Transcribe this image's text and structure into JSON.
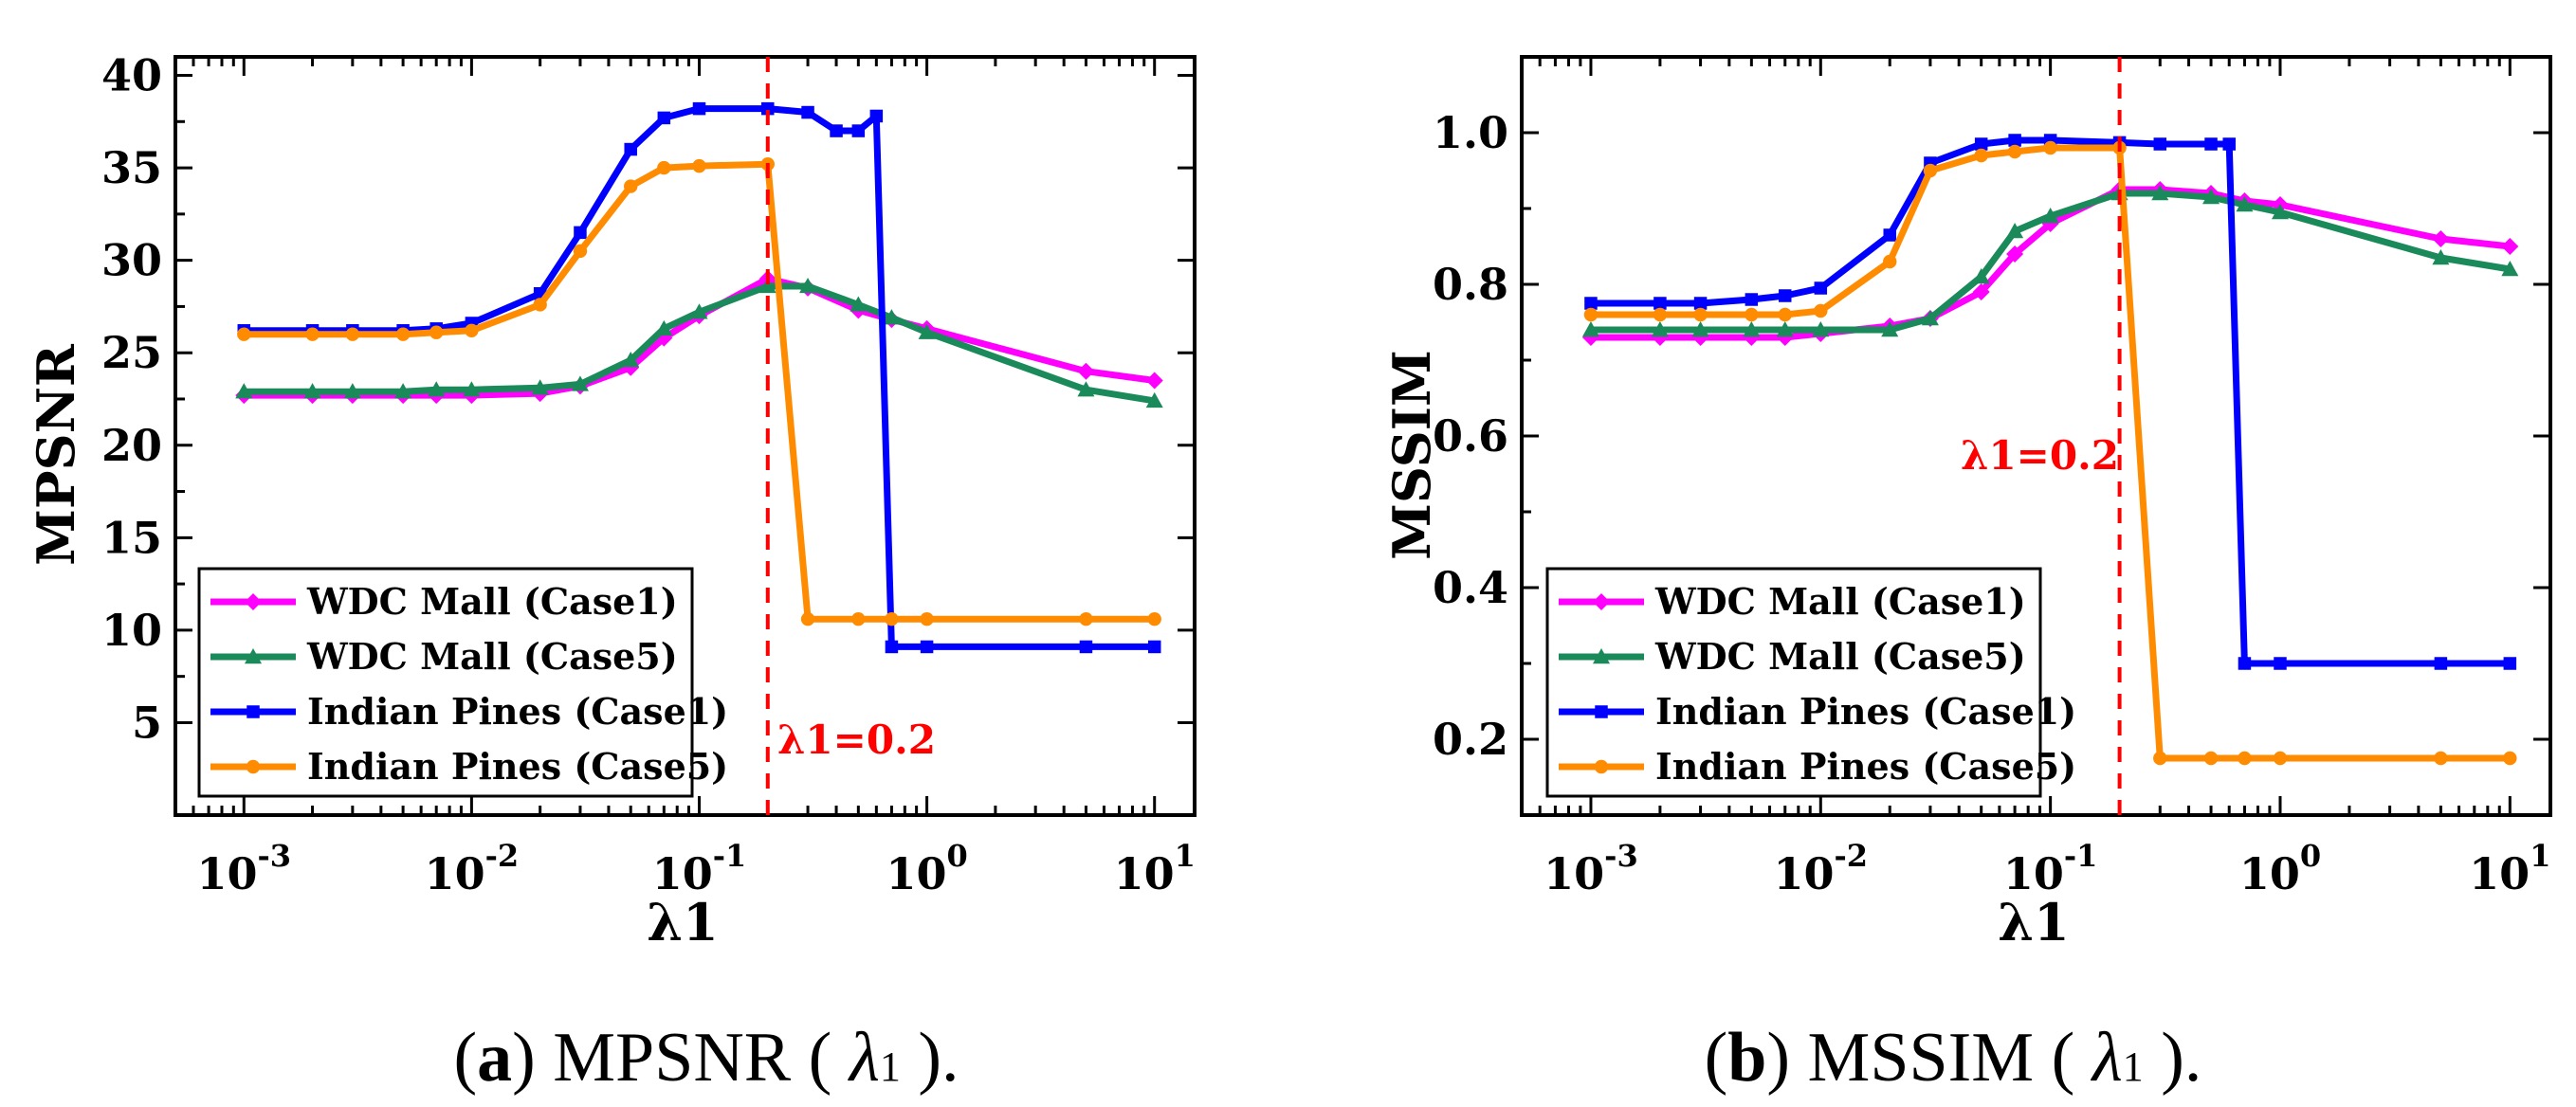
{
  "chart_data": [
    {
      "type": "line",
      "panel": "a",
      "xlabel": "λ1",
      "ylabel": "MPSNR",
      "xscale": "log",
      "xlim": [
        0.0005,
        15
      ],
      "ylim": [
        0,
        41
      ],
      "xticks": [
        {
          "value": 0.001,
          "base": "10",
          "exp": "-3"
        },
        {
          "value": 0.01,
          "base": "10",
          "exp": "-2"
        },
        {
          "value": 0.1,
          "base": "10",
          "exp": "-1"
        },
        {
          "value": 1,
          "base": "10",
          "exp": "0"
        },
        {
          "value": 10,
          "base": "10",
          "exp": "1"
        }
      ],
      "yticks": [
        5,
        10,
        15,
        20,
        25,
        30,
        35,
        40
      ],
      "yticklabels": [
        "5",
        "10",
        "15",
        "20",
        "25",
        "30",
        "35",
        "40"
      ],
      "refline": {
        "x": 0.2,
        "label": "λ1=0.2"
      },
      "legend": {
        "position": "lower-left"
      },
      "series": [
        {
          "name": "WDC Mall (Case1)",
          "color": "#ff00ff",
          "marker": "diamond",
          "x": [
            0.001,
            0.002,
            0.003,
            0.005,
            0.007,
            0.01,
            0.02,
            0.03,
            0.05,
            0.07,
            0.1,
            0.2,
            0.3,
            0.5,
            0.7,
            1,
            5,
            10
          ],
          "y": [
            22.7,
            22.7,
            22.7,
            22.7,
            22.7,
            22.7,
            22.8,
            23.2,
            24.2,
            25.8,
            27.0,
            29.0,
            28.5,
            27.3,
            26.8,
            26.3,
            24.0,
            23.5
          ]
        },
        {
          "name": "WDC Mall (Case5)",
          "color": "#1b8a5a",
          "marker": "triangle",
          "x": [
            0.001,
            0.002,
            0.003,
            0.005,
            0.007,
            0.01,
            0.02,
            0.03,
            0.05,
            0.07,
            0.1,
            0.2,
            0.3,
            0.5,
            0.7,
            1,
            5,
            10
          ],
          "y": [
            22.9,
            22.9,
            22.9,
            22.9,
            23.0,
            23.0,
            23.1,
            23.3,
            24.6,
            26.3,
            27.2,
            28.6,
            28.6,
            27.6,
            26.9,
            26.1,
            23.0,
            22.4
          ]
        },
        {
          "name": "Indian Pines (Case1)",
          "color": "#0000ff",
          "marker": "square",
          "x": [
            0.001,
            0.002,
            0.003,
            0.005,
            0.007,
            0.01,
            0.02,
            0.03,
            0.05,
            0.07,
            0.1,
            0.2,
            0.3,
            0.4,
            0.5,
            0.6,
            0.7,
            1,
            5,
            10
          ],
          "y": [
            26.2,
            26.2,
            26.2,
            26.2,
            26.3,
            26.6,
            28.2,
            31.5,
            36.0,
            37.7,
            38.2,
            38.2,
            38.0,
            37.0,
            37.0,
            37.8,
            9.1,
            9.1,
            9.1,
            9.1
          ]
        },
        {
          "name": "Indian Pines (Case5)",
          "color": "#ff8c00",
          "marker": "circle",
          "x": [
            0.001,
            0.002,
            0.003,
            0.005,
            0.007,
            0.01,
            0.02,
            0.03,
            0.05,
            0.07,
            0.1,
            0.2,
            0.3,
            0.5,
            0.7,
            1,
            5,
            10
          ],
          "y": [
            26.0,
            26.0,
            26.0,
            26.0,
            26.1,
            26.2,
            27.6,
            30.5,
            34.0,
            35.0,
            35.1,
            35.2,
            10.6,
            10.6,
            10.6,
            10.6,
            10.6,
            10.6
          ]
        }
      ]
    },
    {
      "type": "line",
      "panel": "b",
      "xlabel": "λ1",
      "ylabel": "MSSIM",
      "xscale": "log",
      "xlim": [
        0.0005,
        15
      ],
      "ylim": [
        0.1,
        1.1
      ],
      "xticks": [
        {
          "value": 0.001,
          "base": "10",
          "exp": "-3"
        },
        {
          "value": 0.01,
          "base": "10",
          "exp": "-2"
        },
        {
          "value": 0.1,
          "base": "10",
          "exp": "-1"
        },
        {
          "value": 1,
          "base": "10",
          "exp": "0"
        },
        {
          "value": 10,
          "base": "10",
          "exp": "1"
        }
      ],
      "yticks": [
        0.2,
        0.4,
        0.6,
        0.8,
        1.0
      ],
      "yticklabels": [
        "0.2",
        "0.4",
        "0.6",
        "0.8",
        "1.0"
      ],
      "refline": {
        "x": 0.2,
        "label": "λ1=0.2"
      },
      "legend": {
        "position": "lower-left"
      },
      "series": [
        {
          "name": "WDC Mall (Case1)",
          "color": "#ff00ff",
          "marker": "diamond",
          "x": [
            0.001,
            0.002,
            0.003,
            0.005,
            0.007,
            0.01,
            0.02,
            0.03,
            0.05,
            0.07,
            0.1,
            0.2,
            0.3,
            0.5,
            0.7,
            1,
            5,
            10
          ],
          "y": [
            0.73,
            0.73,
            0.73,
            0.73,
            0.73,
            0.735,
            0.745,
            0.755,
            0.79,
            0.84,
            0.88,
            0.925,
            0.925,
            0.92,
            0.91,
            0.905,
            0.86,
            0.85
          ]
        },
        {
          "name": "WDC Mall (Case5)",
          "color": "#1b8a5a",
          "marker": "triangle",
          "x": [
            0.001,
            0.002,
            0.003,
            0.005,
            0.007,
            0.01,
            0.02,
            0.03,
            0.05,
            0.07,
            0.1,
            0.2,
            0.3,
            0.5,
            0.7,
            1,
            5,
            10
          ],
          "y": [
            0.74,
            0.74,
            0.74,
            0.74,
            0.74,
            0.74,
            0.74,
            0.755,
            0.81,
            0.87,
            0.89,
            0.92,
            0.92,
            0.915,
            0.905,
            0.895,
            0.835,
            0.82
          ]
        },
        {
          "name": "Indian Pines (Case1)",
          "color": "#0000ff",
          "marker": "square",
          "x": [
            0.001,
            0.002,
            0.003,
            0.005,
            0.007,
            0.01,
            0.02,
            0.03,
            0.05,
            0.07,
            0.1,
            0.2,
            0.3,
            0.5,
            0.6,
            0.7,
            1,
            5,
            10
          ],
          "y": [
            0.775,
            0.775,
            0.775,
            0.78,
            0.785,
            0.795,
            0.865,
            0.96,
            0.985,
            0.99,
            0.99,
            0.987,
            0.985,
            0.985,
            0.985,
            0.3,
            0.3,
            0.3,
            0.3
          ]
        },
        {
          "name": "Indian Pines (Case5)",
          "color": "#ff8c00",
          "marker": "circle",
          "x": [
            0.001,
            0.002,
            0.003,
            0.005,
            0.007,
            0.01,
            0.02,
            0.03,
            0.05,
            0.07,
            0.1,
            0.2,
            0.3,
            0.5,
            0.7,
            1,
            5,
            10
          ],
          "y": [
            0.76,
            0.76,
            0.76,
            0.76,
            0.76,
            0.765,
            0.83,
            0.95,
            0.97,
            0.975,
            0.98,
            0.98,
            0.175,
            0.175,
            0.175,
            0.175,
            0.175,
            0.175
          ]
        }
      ]
    }
  ],
  "captions": [
    {
      "letter": "a",
      "prefix": "(",
      "text": ") MPSNR ( ",
      "symbol": "λ",
      "subscript": "1",
      "suffix": " )."
    },
    {
      "letter": "b",
      "prefix": "(",
      "text": ") MSSIM ( ",
      "symbol": "λ",
      "subscript": "1",
      "suffix": " )."
    }
  ]
}
